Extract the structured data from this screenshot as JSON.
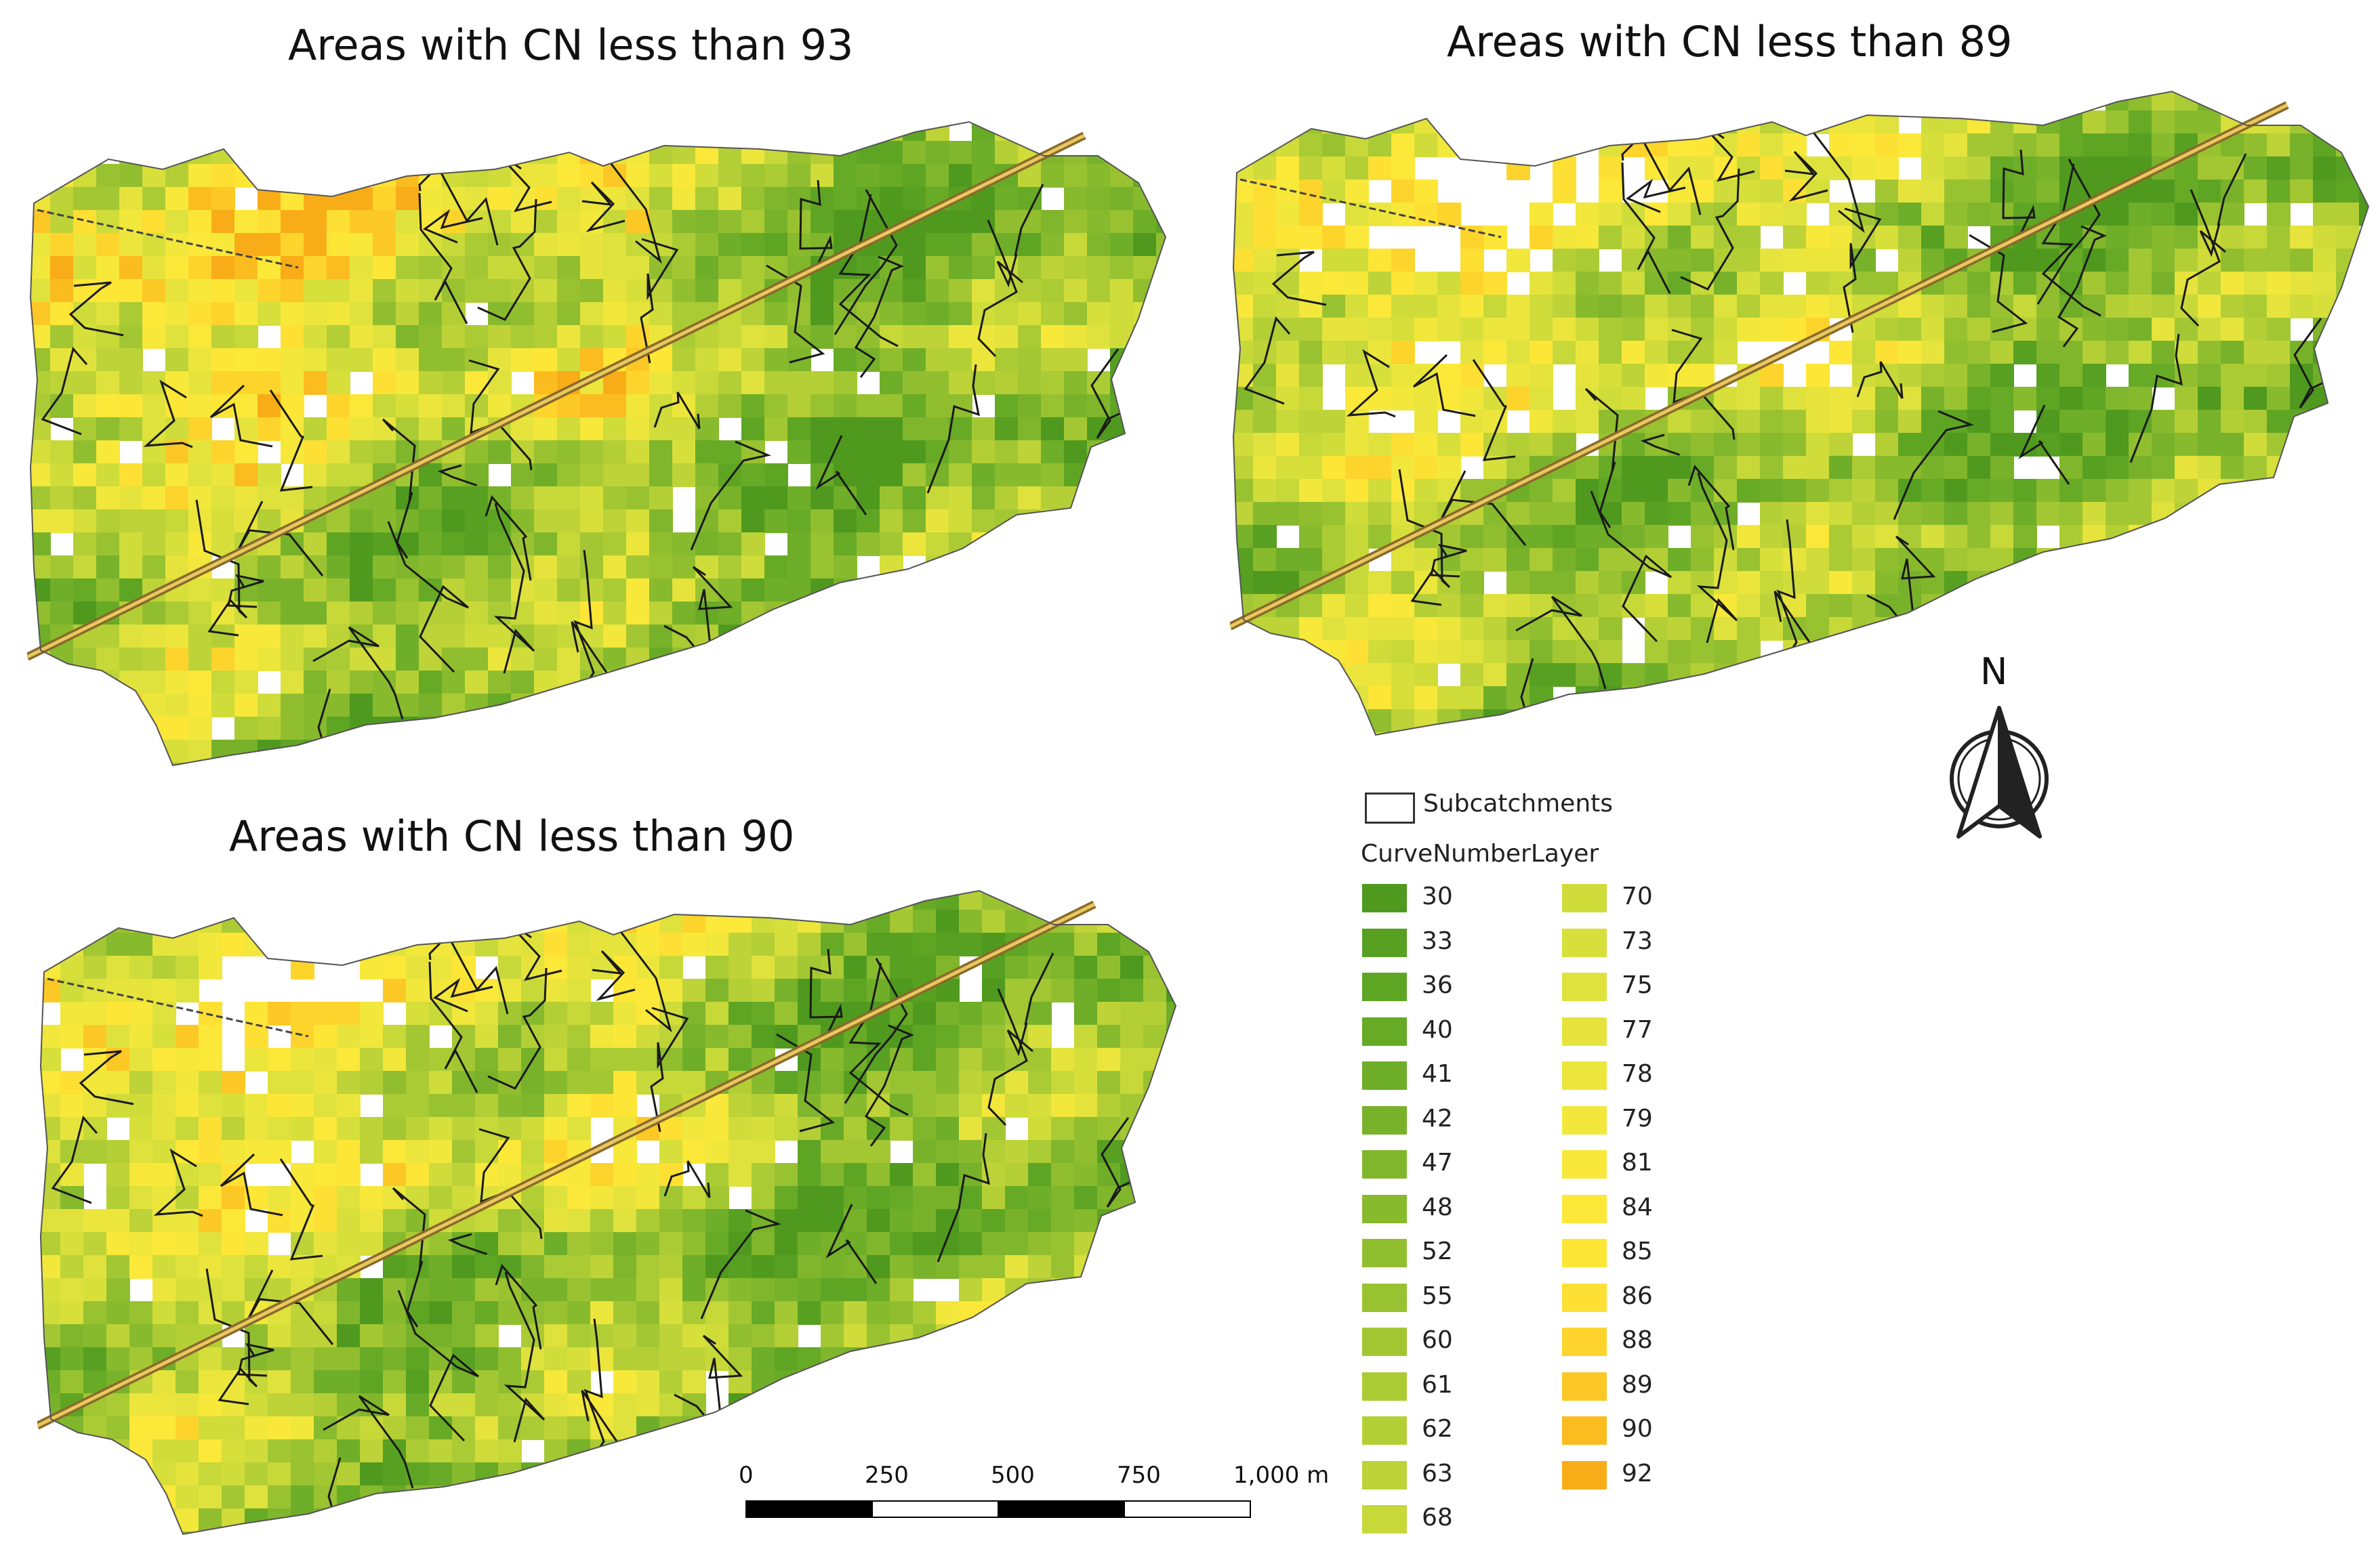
{
  "maps": [
    {
      "title": "Areas with CN less than 93",
      "threshold": 93
    },
    {
      "title": "Areas with CN less than 89",
      "threshold": 89
    },
    {
      "title": "Areas with CN less than 90",
      "threshold": 90
    }
  ],
  "north_arrow": {
    "label": "N"
  },
  "legend": {
    "subcatchments_label": "Subcatchments",
    "layer_title": "CurveNumberLayer",
    "classes": [
      {
        "value": "30",
        "color": "#4f9a1e"
      },
      {
        "value": "33",
        "color": "#57a021"
      },
      {
        "value": "36",
        "color": "#5fa524"
      },
      {
        "value": "40",
        "color": "#67aa26"
      },
      {
        "value": "41",
        "color": "#6fae28"
      },
      {
        "value": "42",
        "color": "#78b22a"
      },
      {
        "value": "47",
        "color": "#80b62c"
      },
      {
        "value": "48",
        "color": "#88ba2e"
      },
      {
        "value": "52",
        "color": "#91be2f"
      },
      {
        "value": "55",
        "color": "#99c231"
      },
      {
        "value": "60",
        "color": "#a3c733"
      },
      {
        "value": "61",
        "color": "#abcb34"
      },
      {
        "value": "62",
        "color": "#b4cf36"
      },
      {
        "value": "63",
        "color": "#bdd337"
      },
      {
        "value": "68",
        "color": "#c7d839"
      },
      {
        "value": "70",
        "color": "#cfdc3a"
      },
      {
        "value": "73",
        "color": "#d7df3b"
      },
      {
        "value": "75",
        "color": "#dfe23c"
      },
      {
        "value": "77",
        "color": "#e6e43c"
      },
      {
        "value": "78",
        "color": "#ece63c"
      },
      {
        "value": "79",
        "color": "#f2e73b"
      },
      {
        "value": "81",
        "color": "#f7e83a"
      },
      {
        "value": "84",
        "color": "#fbe838"
      },
      {
        "value": "85",
        "color": "#fde636"
      },
      {
        "value": "86",
        "color": "#fde033"
      },
      {
        "value": "88",
        "color": "#fdd42c"
      },
      {
        "value": "89",
        "color": "#fcc826"
      },
      {
        "value": "90",
        "color": "#fbbc20"
      },
      {
        "value": "92",
        "color": "#f8ad18"
      }
    ]
  },
  "scale_bar": {
    "labels": [
      "0",
      "250",
      "500",
      "750",
      "1,000 m"
    ]
  }
}
